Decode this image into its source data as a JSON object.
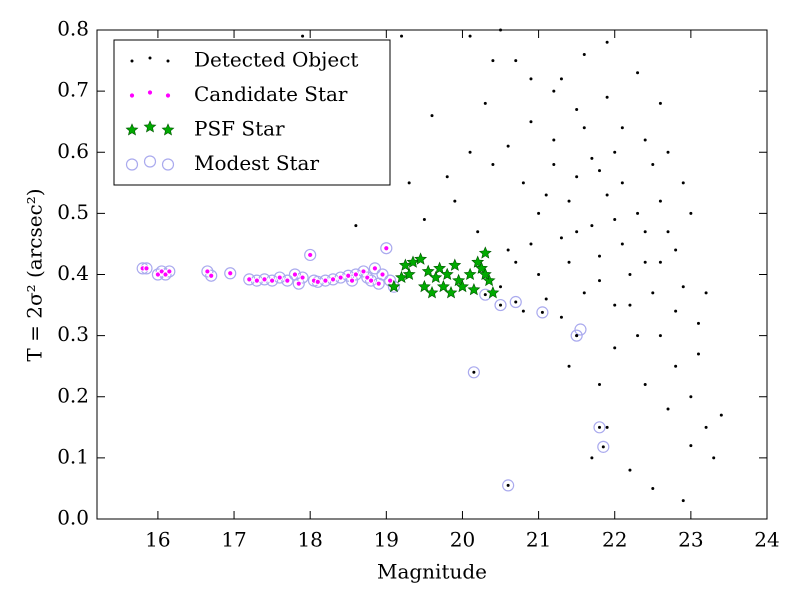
{
  "chart_data": {
    "type": "scatter",
    "xlabel": "Magnitude",
    "ylabel": "T = 2σ² (arcsec²)",
    "xlim": [
      15.2,
      24
    ],
    "ylim": [
      0,
      0.8
    ],
    "xticks": [
      16,
      17,
      18,
      19,
      20,
      21,
      22,
      23,
      24
    ],
    "yticks": [
      {
        "value": 0,
        "label": "0.0"
      },
      0.1,
      0.2,
      0.3,
      0.4,
      0.5,
      0.6,
      0.7,
      0.8
    ],
    "legend": "upper left",
    "series": [
      {
        "name": "Detected Object",
        "color": "#000000",
        "marker": "dot",
        "x": [
          17.9,
          18.6,
          19.5,
          19.6,
          19.8,
          19.9,
          20.1,
          20.3,
          20.5,
          20.1,
          20.2,
          20.4,
          20.6,
          20.7,
          20.8,
          20.9,
          20.5,
          20.7,
          20.9,
          21.0,
          21.1,
          21.2,
          21.3,
          21.4,
          21.5,
          21.6,
          21.7,
          21.8,
          21.9,
          22.0,
          22.1,
          22.2,
          22.3,
          22.4,
          22.5,
          22.6,
          22.7,
          22.8,
          22.9,
          23.0,
          23.1,
          23.2,
          23.3,
          23.4,
          22.6,
          22.3,
          21.9,
          21.6,
          21.2,
          20.9,
          21.5,
          21.8,
          22.0,
          22.2,
          22.5,
          22.9,
          23.0,
          22.7,
          22.4,
          21.9,
          21.7,
          21.4,
          21.3,
          21.1,
          20.8,
          20.6,
          22.1,
          22.2,
          22.4,
          22.6,
          22.8,
          22.9,
          23.0,
          23.1,
          22.0,
          21.8,
          21.6,
          21.4,
          21.2,
          20.4,
          19.2,
          19.3,
          22.3,
          22.5,
          22.1,
          21.9,
          21.7,
          21.5,
          22.7,
          22.8,
          23.2,
          22.6,
          22.4,
          22.0,
          21.8,
          21.5,
          21.3,
          21.0,
          20.6,
          21.85,
          21.8,
          20.15,
          21.05,
          21.5,
          20.5,
          20.7,
          20.3,
          19.0,
          18.0
        ],
        "y": [
          0.79,
          0.48,
          0.49,
          0.66,
          0.56,
          0.52,
          0.79,
          0.68,
          0.8,
          0.6,
          0.47,
          0.58,
          0.61,
          0.75,
          0.55,
          0.45,
          0.38,
          0.42,
          0.65,
          0.5,
          0.36,
          0.62,
          0.72,
          0.42,
          0.56,
          0.64,
          0.48,
          0.39,
          0.53,
          0.6,
          0.45,
          0.35,
          0.5,
          0.42,
          0.58,
          0.3,
          0.47,
          0.25,
          0.38,
          0.2,
          0.32,
          0.15,
          0.1,
          0.17,
          0.68,
          0.73,
          0.78,
          0.76,
          0.7,
          0.72,
          0.3,
          0.22,
          0.28,
          0.08,
          0.05,
          0.03,
          0.12,
          0.18,
          0.22,
          0.15,
          0.1,
          0.25,
          0.46,
          0.53,
          0.34,
          0.44,
          0.55,
          0.4,
          0.62,
          0.52,
          0.44,
          0.55,
          0.5,
          0.27,
          0.35,
          0.43,
          0.37,
          0.52,
          0.58,
          0.75,
          0.79,
          0.55,
          0.3,
          0.37,
          0.64,
          0.69,
          0.59,
          0.67,
          0.6,
          0.34,
          0.37,
          0.42,
          0.47,
          0.49,
          0.57,
          0.47,
          0.33,
          0.4,
          0.055,
          0.118,
          0.15,
          0.24,
          0.338,
          0.3,
          0.35,
          0.355,
          0.367,
          0.443,
          0.432
        ]
      },
      {
        "name": "Candidate Star",
        "color": "#ff00ff",
        "marker": "circle",
        "x": [
          15.8,
          15.85,
          16.0,
          16.05,
          16.1,
          16.15,
          16.65,
          16.7,
          16.95,
          17.2,
          17.3,
          17.4,
          17.5,
          17.6,
          17.7,
          17.8,
          17.85,
          17.9,
          18.0,
          18.05,
          18.1,
          18.2,
          18.3,
          18.4,
          18.5,
          18.55,
          18.6,
          18.7,
          18.75,
          18.8,
          18.85,
          18.9,
          18.95,
          19.0,
          19.05,
          19.1
        ],
        "y": [
          0.41,
          0.41,
          0.4,
          0.405,
          0.4,
          0.405,
          0.405,
          0.398,
          0.402,
          0.392,
          0.39,
          0.392,
          0.39,
          0.395,
          0.39,
          0.4,
          0.385,
          0.395,
          0.432,
          0.39,
          0.388,
          0.39,
          0.392,
          0.395,
          0.398,
          0.39,
          0.4,
          0.405,
          0.395,
          0.39,
          0.41,
          0.385,
          0.4,
          0.443,
          0.39,
          0.38
        ]
      },
      {
        "name": "PSF Star",
        "color": "#00aa00",
        "marker": "star",
        "x": [
          19.1,
          19.2,
          19.25,
          19.3,
          19.35,
          19.45,
          19.5,
          19.55,
          19.6,
          19.65,
          19.7,
          19.75,
          19.8,
          19.85,
          19.9,
          19.95,
          20.0,
          20.1,
          20.15,
          20.2,
          20.25,
          20.3,
          20.35,
          20.4,
          20.3
        ],
        "y": [
          0.38,
          0.395,
          0.415,
          0.4,
          0.42,
          0.425,
          0.38,
          0.405,
          0.37,
          0.395,
          0.41,
          0.38,
          0.4,
          0.37,
          0.415,
          0.39,
          0.38,
          0.4,
          0.375,
          0.42,
          0.41,
          0.435,
          0.39,
          0.37,
          0.4
        ]
      },
      {
        "name": "Modest Star",
        "color": "#aaaaee",
        "marker": "open-circle",
        "x": [
          15.8,
          15.85,
          16.0,
          16.05,
          16.1,
          16.15,
          16.65,
          16.7,
          16.95,
          17.2,
          17.3,
          17.4,
          17.5,
          17.6,
          17.7,
          17.8,
          17.85,
          17.9,
          18.0,
          18.05,
          18.1,
          18.2,
          18.3,
          18.4,
          18.5,
          18.55,
          18.6,
          18.7,
          18.75,
          18.8,
          18.85,
          18.9,
          18.95,
          19.0,
          19.05,
          19.1,
          20.15,
          20.3,
          20.5,
          20.7,
          21.05,
          21.5,
          21.55,
          21.8,
          21.85,
          20.6
        ],
        "y": [
          0.41,
          0.41,
          0.4,
          0.405,
          0.4,
          0.405,
          0.405,
          0.398,
          0.402,
          0.392,
          0.39,
          0.392,
          0.39,
          0.395,
          0.39,
          0.4,
          0.385,
          0.395,
          0.432,
          0.39,
          0.388,
          0.39,
          0.392,
          0.395,
          0.398,
          0.39,
          0.4,
          0.405,
          0.395,
          0.39,
          0.41,
          0.385,
          0.4,
          0.443,
          0.39,
          0.38,
          0.24,
          0.367,
          0.35,
          0.355,
          0.338,
          0.3,
          0.31,
          0.15,
          0.118,
          0.055
        ]
      }
    ]
  }
}
